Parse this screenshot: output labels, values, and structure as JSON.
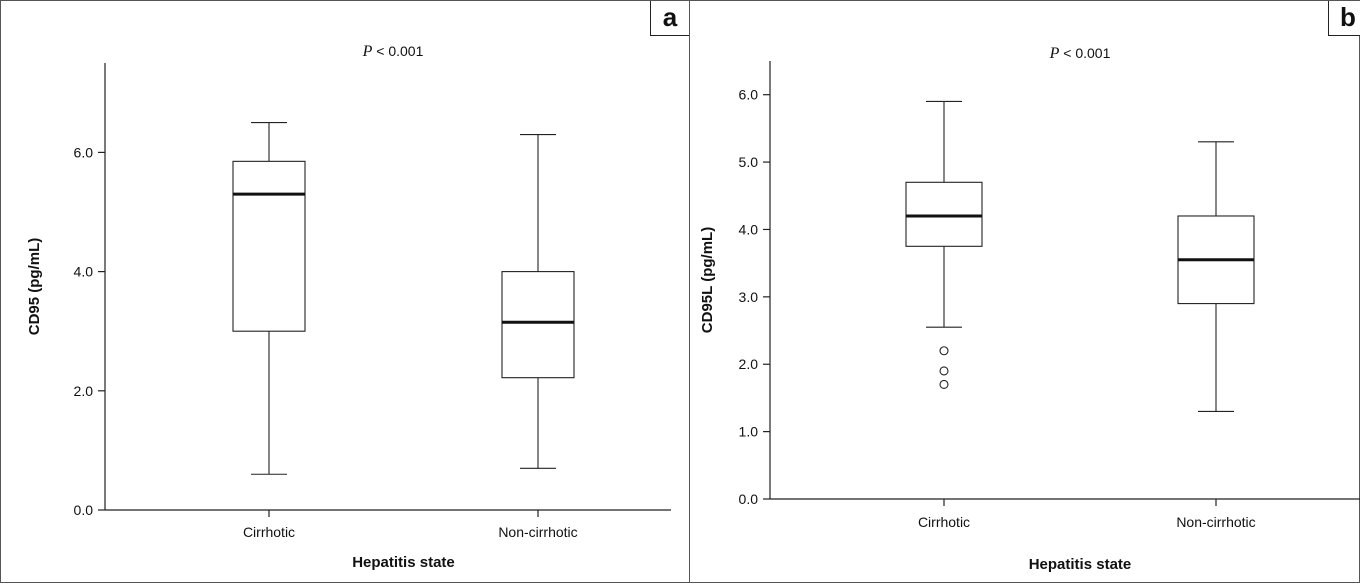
{
  "chart_data": [
    {
      "panel": "a",
      "type": "box",
      "annotation": {
        "p_symbol": "P",
        "p_text": " < 0.001"
      },
      "xlabel": "Hepatitis state",
      "ylabel": "CD95 (pg/mL)",
      "ylim": [
        0,
        7.5
      ],
      "yticks": [
        0.0,
        2.0,
        4.0,
        6.0
      ],
      "ytick_labels": [
        "0.0",
        "2.0",
        "4.0",
        "6.0"
      ],
      "categories": [
        "Cirrhotic",
        "Non-cirrhotic"
      ],
      "boxes": [
        {
          "category": "Cirrhotic",
          "min": 0.6,
          "q1": 3.0,
          "median": 5.3,
          "q3": 5.85,
          "max": 6.5,
          "outliers": []
        },
        {
          "category": "Non-cirrhotic",
          "min": 0.7,
          "q1": 2.22,
          "median": 3.15,
          "q3": 4.0,
          "max": 6.3,
          "outliers": []
        }
      ]
    },
    {
      "panel": "b",
      "type": "box",
      "annotation": {
        "p_symbol": "P",
        "p_text": " < 0.001"
      },
      "xlabel": "Hepatitis state",
      "ylabel": "CD95L (pg/mL)",
      "ylim": [
        0,
        6.5
      ],
      "yticks": [
        0.0,
        1.0,
        2.0,
        3.0,
        4.0,
        5.0,
        6.0
      ],
      "ytick_labels": [
        "0.0",
        "1.0",
        "2.0",
        "3.0",
        "4.0",
        "5.0",
        "6.0"
      ],
      "categories": [
        "Cirrhotic",
        "Non-cirrhotic"
      ],
      "boxes": [
        {
          "category": "Cirrhotic",
          "min": 2.55,
          "q1": 3.75,
          "median": 4.2,
          "q3": 4.7,
          "max": 5.9,
          "outliers": [
            2.2,
            1.9,
            1.7
          ]
        },
        {
          "category": "Non-cirrhotic",
          "min": 1.3,
          "q1": 2.9,
          "median": 3.55,
          "q3": 4.2,
          "max": 5.3,
          "outliers": []
        }
      ]
    }
  ],
  "panels": {
    "a_label": "a",
    "b_label": "b"
  }
}
